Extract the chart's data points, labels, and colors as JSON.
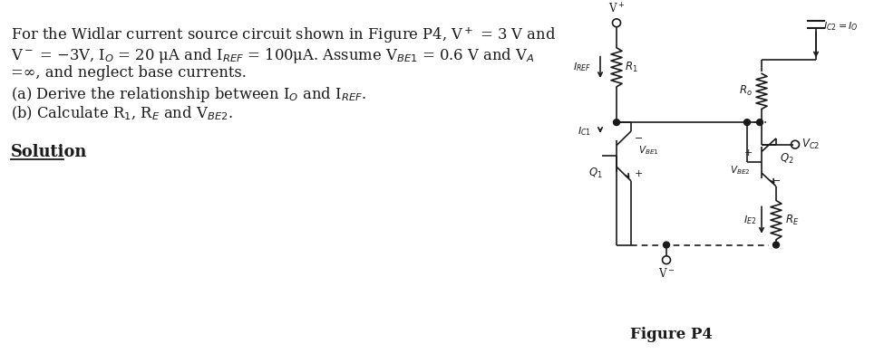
{
  "bg_color": "#ffffff",
  "text_color": "#1a1a1a",
  "fig_label": "Figure P4",
  "line1": "For the Widlar current source circuit shown in Figure P4, V$^+$ = 3 V and",
  "line2": "V$^-$ = −3V, I$_O$ = 20 μA and I$_{REF}$ = 100μA. Assume V$_{BE1}$ = 0.6 V and V$_A$",
  "line3": "=∞, and neglect base currents.",
  "line4": "(a) Derive the relationship between I$_O$ and I$_{REF}$.",
  "line5": "(b) Calculate R$_1$, R$_E$ and V$_{BE2}$.",
  "line6": "Solution"
}
